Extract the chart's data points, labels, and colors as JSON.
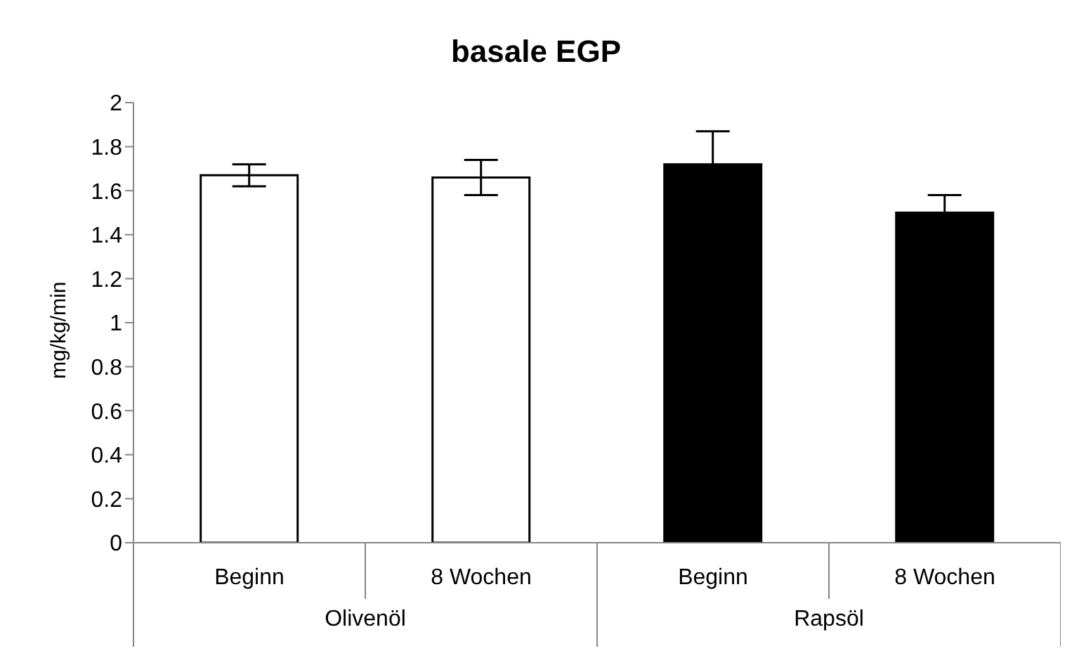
{
  "chart_data": {
    "type": "bar",
    "title": "basale EGP",
    "ylabel": "mg/kg/min",
    "categories": [
      "Beginn",
      "8 Wochen",
      "Beginn",
      "8 Wochen"
    ],
    "values": [
      1.67,
      1.66,
      1.72,
      1.5
    ],
    "colors": [
      "#ffffff",
      "#ffffff",
      "#000000",
      "#000000"
    ],
    "errors": [
      0.05,
      0.08,
      0.15,
      0.08
    ],
    "ylim": [
      0,
      2
    ],
    "yticks": [
      0,
      0.2,
      0.4,
      0.6,
      0.8,
      1,
      1.2,
      1.4,
      1.6,
      1.8,
      2
    ],
    "annotations": [
      "Olivenöl",
      "Rapsöl"
    ],
    "grid": false,
    "legend": false
  }
}
